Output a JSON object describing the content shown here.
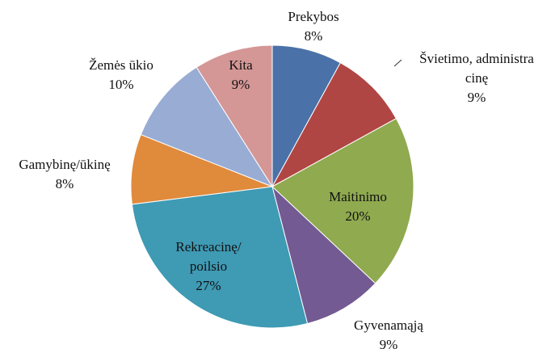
{
  "chart_data": {
    "type": "pie",
    "categories": [
      "Prekybos",
      "Švietimo, administra\ncinę",
      "Maitinimo",
      "Gyvenamąją",
      "Rekreacinę/\npoilsio",
      "Gamybinę/ūkinę",
      "Žemės ūkio",
      "Kita"
    ],
    "values": [
      8,
      9,
      20,
      9,
      27,
      8,
      10,
      9
    ],
    "value_labels": [
      "8%",
      "9%",
      "20%",
      "9%",
      "27%",
      "8%",
      "10%",
      "9%"
    ],
    "colors": [
      "#4a72a8",
      "#b04644",
      "#8faa4f",
      "#735a92",
      "#3f9ab4",
      "#e08a3c",
      "#98acd4",
      "#d49796"
    ]
  }
}
